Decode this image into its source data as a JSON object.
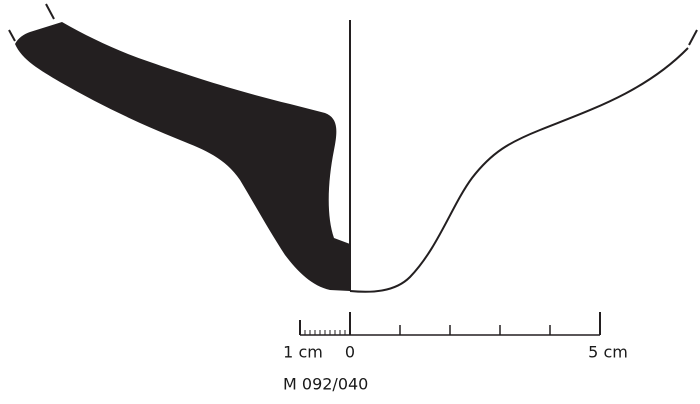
{
  "scale_bar": {
    "left_label": "1 cm",
    "zero_label": "0",
    "right_label": "5 cm"
  },
  "catalog_id": "M 092/040"
}
